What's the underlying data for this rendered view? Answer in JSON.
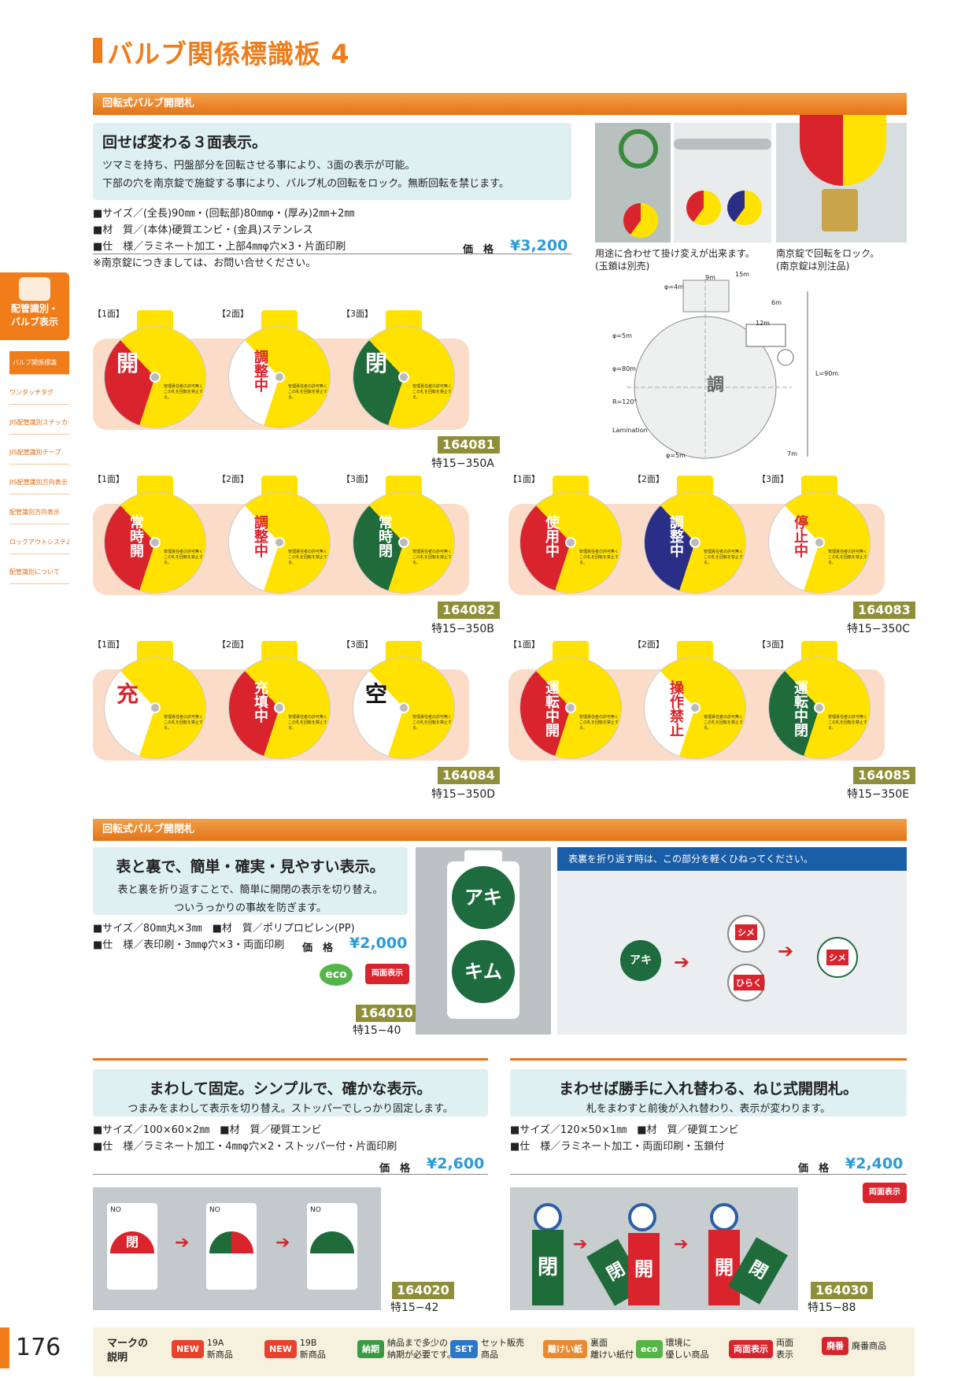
{
  "page": {
    "title": "バルブ関係標識板 4",
    "number": "176"
  },
  "sidebar": {
    "head_label_1": "配管識別・",
    "head_label_2": "バルブ表示",
    "items": [
      {
        "label": "バルブ関係標識"
      },
      {
        "label": "ワンタッチタグ"
      },
      {
        "label": "JIS配管識別ステッカー"
      },
      {
        "label": "JIS配管識別テープ"
      },
      {
        "label": "JIS配管識別方向表示"
      },
      {
        "label": "配管識別方向表示"
      },
      {
        "label": "ロックアウトシステム"
      },
      {
        "label": "配管識別について"
      }
    ]
  },
  "section1": {
    "bar": "回転式バルブ開閉札",
    "catch_title": "回せば変わる３面表示。",
    "catch_line1": "ツマミを持ち、円盤部分を回転させる事により、3面の表示が可能。",
    "catch_line2": "下部の穴を南京錠で施錠する事により、バルブ札の回転をロック。無断回転を禁じます。",
    "spec_size": "■サイズ／(全長)90㎜・(回転部)80㎜φ・(厚み)2㎜+2㎜",
    "spec_material": "■材　質／(本体)硬質エンビ・(金具)ステンレス",
    "spec_spec": "■仕　様／ラミネート加工・上部4㎜φ穴×3・片面印刷",
    "price_label": "価　格",
    "price": "¥3,200",
    "note": "※南京錠につきましては、お問い合せください。",
    "photo_caption_1a": "用途に合わせて掛け変えが出来ます。",
    "photo_caption_1b": "(玉鎖は別売)",
    "photo_caption_2a": "南京錠で回転をロック。",
    "photo_caption_2b": "(南京錠は別注品)",
    "drawing_labels": {
      "d1": "φ=4m",
      "d2": "9m",
      "d3": "15m",
      "d4": "6m",
      "d5": "φ=5m",
      "d6": "φ=80m",
      "d7": "R=120°",
      "d8": "Lamination",
      "d9": "φ=5m",
      "d10": "7m",
      "d11": "L=90m",
      "d12": "12m"
    }
  },
  "faces": {
    "f1": "【1面】",
    "f2": "【2面】",
    "f3": "【3面】"
  },
  "small_print": "管理責任者の許可無くこの札を回転を禁止する。",
  "products_rot": [
    {
      "code": "164081",
      "model": "特15−350A",
      "faces": [
        "開",
        "調整中",
        "閉"
      ]
    },
    {
      "code": "164082",
      "model": "特15−350B",
      "faces": [
        "常時開",
        "調整中",
        "常時閉"
      ]
    },
    {
      "code": "164083",
      "model": "特15−350C",
      "faces": [
        "使用中",
        "調整中",
        "停止中"
      ]
    },
    {
      "code": "164084",
      "model": "特15−350D",
      "faces": [
        "充",
        "充填中",
        "空"
      ]
    },
    {
      "code": "164085",
      "model": "特15−350E",
      "faces": [
        "運転中開",
        "操作禁止",
        "運転中閉"
      ]
    }
  ],
  "section2": {
    "bar": "回転式バルブ開閉札",
    "catch_title": "表と裏で、簡単・確実・見やすい表示。",
    "catch_line1": "表と裏を折り返すことで、簡単に開閉の表示を切り替え。",
    "catch_line2": "ついうっかりの事故を防ぎます。",
    "spec_line1": "■サイズ／80㎜丸×3㎜　■材　質／ポリプロピレン(PP)",
    "spec_line2": "■仕　様／表印刷・3㎜φ穴×3・両面印刷",
    "price_label": "価　格",
    "price": "¥2,000",
    "code": "164010",
    "model": "特15−40",
    "photo_text_top": "アキ",
    "photo_text_bottom": "キム",
    "instruction": "表裏を折り返す時は、この部分を軽くひねってください。",
    "diag_a": "アキ",
    "diag_b": "シメ",
    "diag_c": "ひらく"
  },
  "section3": {
    "catch_title": "まわして固定。シンプルで、確かな表示。",
    "catch_line": "つまみをまわして表示を切り替え。ストッパーでしっかり固定します。",
    "spec_line1": "■サイズ／100×60×2㎜　■材　質／硬質エンビ",
    "spec_line2": "■仕　様／ラミネート加工・4㎜φ穴×2・ストッパー付・片面印刷",
    "price_label": "価　格",
    "price": "¥2,600",
    "code": "164020",
    "model": "特15−42",
    "plate_text": "閉",
    "plate_no": "NO"
  },
  "section4": {
    "catch_title": "まわせば勝手に入れ替わる、ねじ式開閉札。",
    "catch_line": "札をまわすと前後が入れ替わり、表示が変わります。",
    "spec_line1": "■サイズ／120×50×1㎜　■材　質／硬質エンビ",
    "spec_line2": "■仕　様／ラミネート加工・両面印刷・玉鎖付",
    "price_label": "価　格",
    "price": "¥2,400",
    "code": "164030",
    "model": "特15−88",
    "tag_a": "閉",
    "tag_b": "開",
    "tag_c": "開",
    "tag_d": "閉"
  },
  "marks": {
    "eco": "eco",
    "both": "両面表示"
  },
  "legend": {
    "title_1": "マークの",
    "title_2": "説明",
    "items": [
      {
        "badge": "NEW",
        "l1": "19A",
        "l2": "新商品"
      },
      {
        "badge": "NEW",
        "l1": "19B",
        "l2": "新商品"
      },
      {
        "badge": "納期",
        "l1": "納品まで多少の",
        "l2": "納期が必要です。"
      },
      {
        "badge": "SET",
        "l1": "セット販売",
        "l2": "商品"
      },
      {
        "badge": "離けい紙",
        "l1": "裏面",
        "l2": "離けい紙付"
      },
      {
        "badge": "eco",
        "l1": "環境に",
        "l2": "優しい商品"
      },
      {
        "badge": "両面表示",
        "l1": "両面",
        "l2": "表示"
      },
      {
        "badge": "廃番",
        "l1": "廃番商品",
        "l2": ""
      }
    ]
  },
  "colors": {
    "orange": "#f07d1a",
    "price_blue": "#2b9bd6",
    "red": "#d9232d",
    "green": "#1f6b3a",
    "navy": "#2b2e86",
    "yellow": "#ffe200"
  }
}
